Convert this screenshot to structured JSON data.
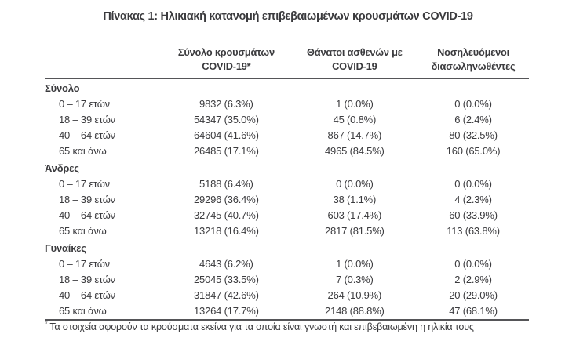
{
  "title": "Πίνακας 1: Ηλικιακή κατανομή επιβεβαιωμένων κρουσμάτων COVID-19",
  "table": {
    "columns": [
      {
        "line1": "Σύνολο κρουσμάτων",
        "line2": "COVID-19*"
      },
      {
        "line1": "Θάνατοι ασθενών με",
        "line2": "COVID-19"
      },
      {
        "line1": "Νοσηλευόμενοι",
        "line2": "διασωληνωθέντες"
      }
    ],
    "sections": [
      {
        "label": "Σύνολο",
        "rows": [
          {
            "label": "0 – 17 ετών",
            "cases": "9832 (6.3%)",
            "deaths": "1 (0.0%)",
            "intubated": "0 (0.0%)"
          },
          {
            "label": "18 – 39 ετών",
            "cases": "54347 (35.0%)",
            "deaths": "45 (0.8%)",
            "intubated": "6 (2.4%)"
          },
          {
            "label": "40 – 64 ετών",
            "cases": "64604 (41.6%)",
            "deaths": "867 (14.7%)",
            "intubated": "80 (32.5%)"
          },
          {
            "label": "65 και άνω",
            "cases": "26485 (17.1%)",
            "deaths": "4965 (84.5%)",
            "intubated": "160 (65.0%)"
          }
        ]
      },
      {
        "label": "Άνδρες",
        "rows": [
          {
            "label": "0 – 17 ετών",
            "cases": "5188 (6.4%)",
            "deaths": "0 (0.0%)",
            "intubated": "0 (0.0%)"
          },
          {
            "label": "18 – 39 ετών",
            "cases": "29296 (36.4%)",
            "deaths": "38 (1.1%)",
            "intubated": "4 (2.3%)"
          },
          {
            "label": "40 – 64 ετών",
            "cases": "32745 (40.7%)",
            "deaths": "603 (17.4%)",
            "intubated": "60 (33.9%)"
          },
          {
            "label": "65 και άνω",
            "cases": "13218 (16.4%)",
            "deaths": "2817 (81.5%)",
            "intubated": "113 (63.8%)"
          }
        ]
      },
      {
        "label": "Γυναίκες",
        "rows": [
          {
            "label": "0 – 17 ετών",
            "cases": "4643 (6.2%)",
            "deaths": "1 (0.0%)",
            "intubated": "0 (0.0%)"
          },
          {
            "label": "18 – 39 ετών",
            "cases": "25045 (33.5%)",
            "deaths": "7 (0.3%)",
            "intubated": "2 (2.9%)"
          },
          {
            "label": "40 – 64 ετών",
            "cases": "31847 (42.6%)",
            "deaths": "264 (10.9%)",
            "intubated": "20 (29.0%)"
          },
          {
            "label": "65 και άνω",
            "cases": "13264 (17.7%)",
            "deaths": "2148 (88.8%)",
            "intubated": "47 (68.1%)"
          }
        ]
      }
    ]
  },
  "footnote": {
    "marker": "*",
    "text": "Τα στοιχεία αφορούν τα κρούσματα εκείνα για τα οποία είναι γνωστή και επιβεβαιωμένη η ηλικία τους"
  },
  "colors": {
    "text": "#3b3b3e",
    "line": "#555558",
    "background": "#ffffff"
  }
}
